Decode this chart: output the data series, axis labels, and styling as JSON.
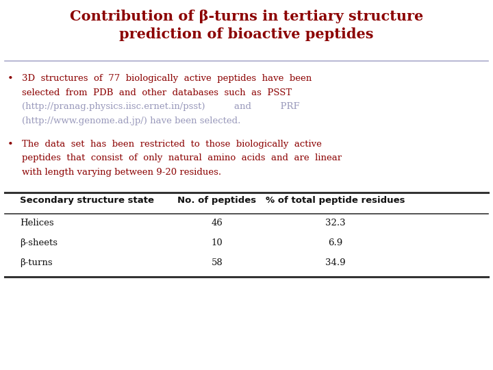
{
  "title_line1": "Contribution of β-turns in tertiary structure",
  "title_line2": "prediction of bioactive peptides",
  "title_color": "#8B0000",
  "title_fontsize": 15,
  "bullet_color": "#8B0000",
  "link_color": "#9999BB",
  "text_color": "#8B0000",
  "text_fontsize": 9.5,
  "bullet1_lines": [
    "3D  structures  of  77  biologically  active  peptides  have  been",
    "selected  from  PDB  and  other  databases  such  as  PSST",
    "(http://pranag.physics.iisc.ernet.in/psst)          and          PRF",
    "(http://www.genome.ad.jp/) have been selected."
  ],
  "bullet2_lines": [
    "The  data  set  has  been  restricted  to  those  biologically  active",
    "peptides  that  consist  of  only  natural  amino  acids  and  are  linear",
    "with length varying between 9-20 residues."
  ],
  "table_header": [
    "Secondary structure state",
    "No. of peptides",
    "% of total peptide residues"
  ],
  "table_rows": [
    [
      "Helices",
      "46",
      "32.3"
    ],
    [
      "β-sheets",
      "10",
      "6.9"
    ],
    [
      "β-turns",
      "58",
      "34.9"
    ]
  ],
  "table_header_fontsize": 9.5,
  "table_row_fontsize": 9.5,
  "bg_color": "#FFFFFF",
  "separator_color": "#AAAACC",
  "table_line_color": "#333333",
  "fig_width": 7.2,
  "fig_height": 5.4,
  "dpi": 100
}
